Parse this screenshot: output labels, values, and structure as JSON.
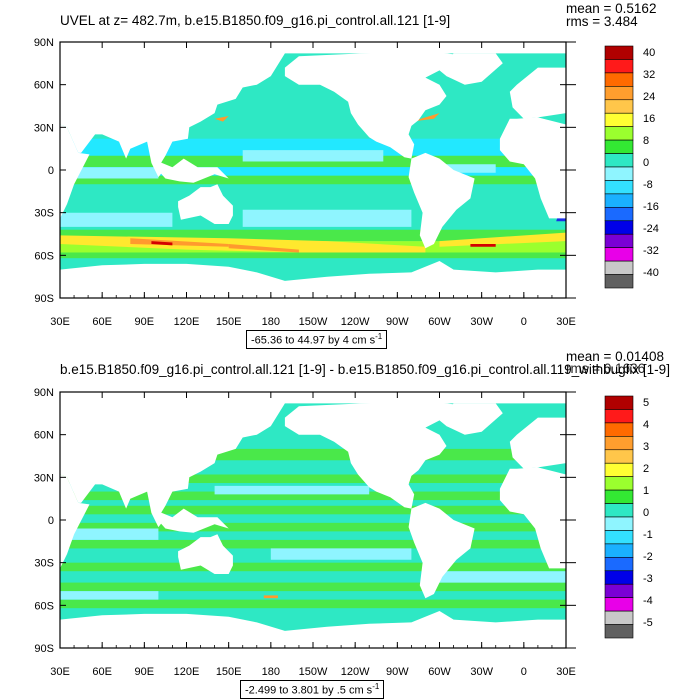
{
  "panels": [
    {
      "title": "UVEL at z= 482.7m, b.e15.B1850.f09_g16.pi_control.all.121 [1-9]",
      "stat_mean": "mean = 0.5162",
      "stat_rms": "rms = 3.484",
      "range_text": "-65.36 to 44.97 by 4 cm s",
      "range_sup": "-1"
    },
    {
      "title": "b.e15.B1850.f09_g16.pi_control.all.121 [1-9] - b.e15.B1850.f09_g16.pi_control.all.119_withbugfix [1-9]",
      "stat_mean": "mean = 0.01408",
      "stat_rms": "rms = 0.1636",
      "range_text": "-2.499 to 3.801 by .5 cm s",
      "range_sup": "-1"
    }
  ],
  "colors": {
    "land": "#ffffff",
    "ocean_main": "#2ee8c4",
    "ocean_light": "#8ff5ff",
    "ocean_cyan": "#22e8ff",
    "green": "#4ae84a",
    "light_green": "#9bff2e",
    "yellow": "#ffe82e",
    "orange": "#ff9a2e",
    "red": "#d40000",
    "blue": "#1a2ee8"
  },
  "chart_data": [
    {
      "type": "heatmap",
      "title": "UVEL at z= 482.7m, b.e15.B1850.f09_g16.pi_control.all.121 [1-9]",
      "xlabel": "",
      "ylabel": "",
      "x_ticks": [
        "30E",
        "60E",
        "90E",
        "120E",
        "150E",
        "180",
        "150W",
        "120W",
        "90W",
        "60W",
        "30W",
        "0",
        "30E"
      ],
      "y_ticks": [
        "90N",
        "60N",
        "30N",
        "0",
        "30S",
        "60S",
        "90S"
      ],
      "xlim": [
        30,
        390
      ],
      "ylim": [
        -90,
        90
      ],
      "colorbar": {
        "levels": [
          "40",
          "32",
          "24",
          "16",
          "8",
          "0",
          "-8",
          "-16",
          "-24",
          "-32",
          "-40"
        ],
        "colors": [
          "#b00000",
          "#ff1a1a",
          "#ff6a00",
          "#ff9e2e",
          "#ffc64a",
          "#ffff33",
          "#9bff2e",
          "#33e833",
          "#2ee8c4",
          "#8ff5ff",
          "#33e0ff",
          "#1ab0ff",
          "#1a6aff",
          "#0000e8",
          "#7a00d4",
          "#e800e8",
          "#c8c8c8",
          "#606060"
        ]
      },
      "stats": {
        "mean": 0.5162,
        "rms": 3.484
      },
      "range": {
        "min": -65.36,
        "max": 44.97,
        "interval": 4,
        "units": "cm s-1"
      }
    },
    {
      "type": "heatmap",
      "title": "b.e15.B1850.f09_g16.pi_control.all.121 [1-9] - b.e15.B1850.f09_g16.pi_control.all.119_withbugfix [1-9]",
      "xlabel": "",
      "ylabel": "",
      "x_ticks": [
        "30E",
        "60E",
        "90E",
        "120E",
        "150E",
        "180",
        "150W",
        "120W",
        "90W",
        "60W",
        "30W",
        "0",
        "30E"
      ],
      "y_ticks": [
        "90N",
        "60N",
        "30N",
        "0",
        "30S",
        "60S",
        "90S"
      ],
      "xlim": [
        30,
        390
      ],
      "ylim": [
        -90,
        90
      ],
      "colorbar": {
        "levels": [
          "5",
          "4",
          "3",
          "2",
          "1",
          "0",
          "-1",
          "-2",
          "-3",
          "-4",
          "-5"
        ],
        "colors": [
          "#b00000",
          "#ff1a1a",
          "#ff6a00",
          "#ff9e2e",
          "#ffc64a",
          "#ffff33",
          "#9bff2e",
          "#33e833",
          "#2ee8c4",
          "#8ff5ff",
          "#33e0ff",
          "#1ab0ff",
          "#1a6aff",
          "#0000e8",
          "#7a00d4",
          "#e800e8",
          "#c8c8c8",
          "#606060"
        ]
      },
      "stats": {
        "mean": 0.01408,
        "rms": 0.1636
      },
      "range": {
        "min": -2.499,
        "max": 3.801,
        "interval": 0.5,
        "units": "cm s-1"
      }
    }
  ]
}
